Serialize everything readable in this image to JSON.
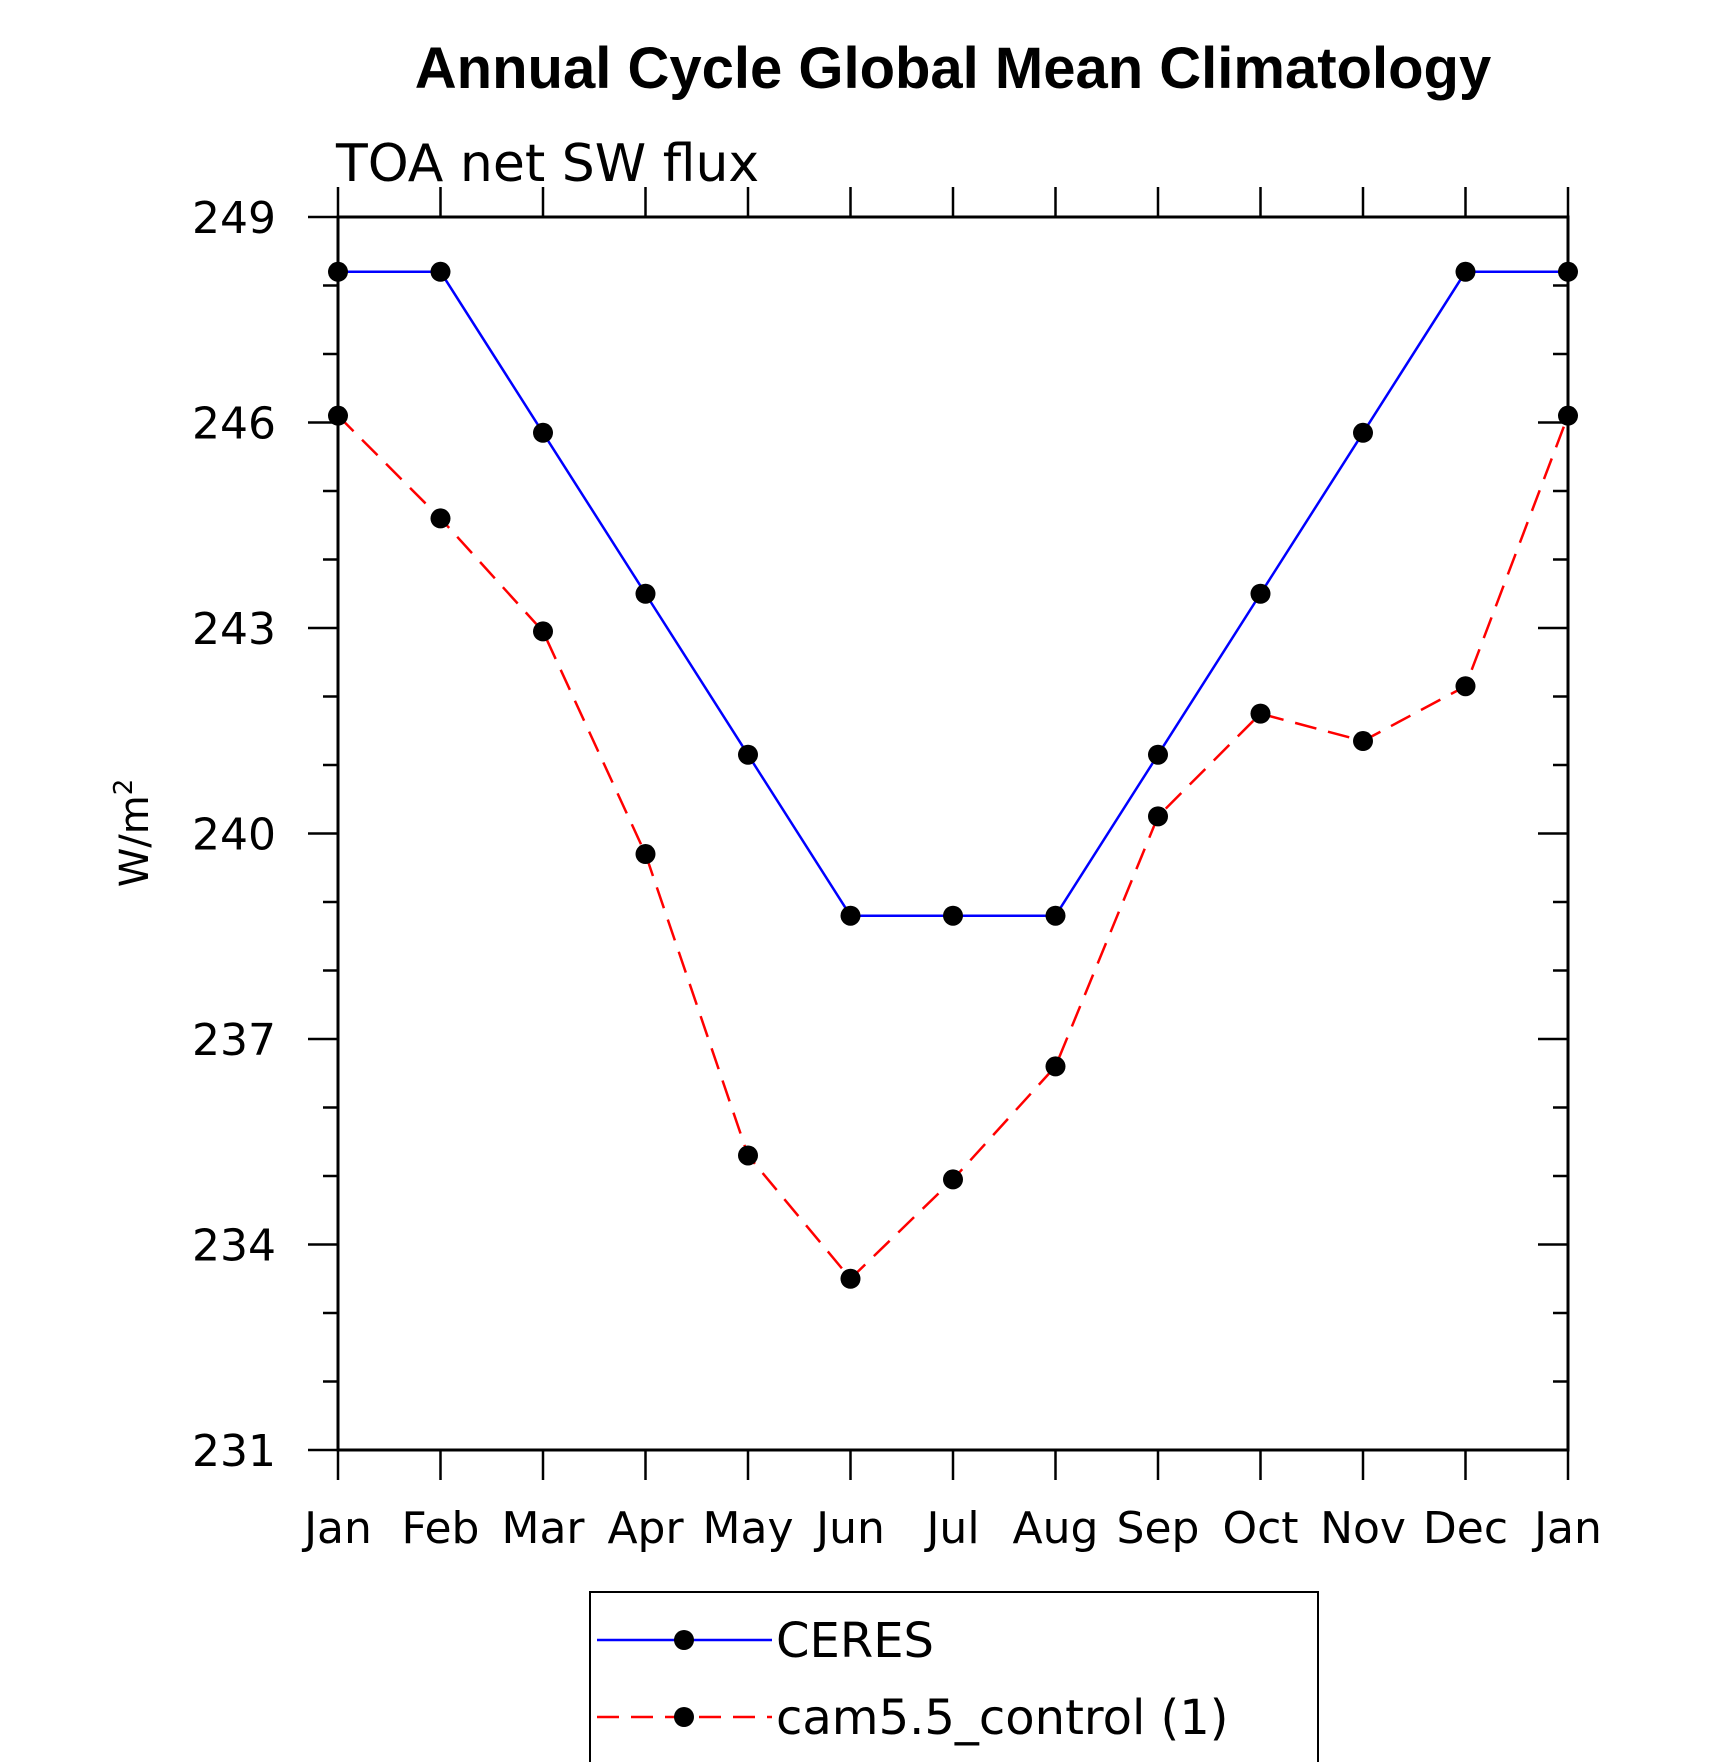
{
  "chart_data": {
    "type": "line",
    "title": "Annual Cycle Global Mean Climatology",
    "subtitle": "TOA net SW flux",
    "ylabel": "W/m",
    "ylabel_superscript": "2",
    "ylim": [
      231,
      249
    ],
    "yticks": [
      "231",
      "234",
      "237",
      "240",
      "243",
      "246",
      "249"
    ],
    "categories": [
      "Jan",
      "Feb",
      "Mar",
      "Apr",
      "May",
      "Jun",
      "Jul",
      "Aug",
      "Sep",
      "Oct",
      "Nov",
      "Dec",
      "Jan"
    ],
    "series": [
      {
        "name": "CERES",
        "color": "#0000ff",
        "dash": "solid",
        "values": [
          248.2,
          248.2,
          245.85,
          243.5,
          241.15,
          238.8,
          238.8,
          238.8,
          241.15,
          243.5,
          245.85,
          248.2,
          248.2
        ]
      },
      {
        "name": "cam5.5_control (1)",
        "color": "#ff0000",
        "dash": "dashed",
        "values": [
          246.1,
          244.6,
          242.95,
          239.7,
          235.3,
          233.5,
          234.95,
          236.6,
          240.25,
          241.75,
          241.35,
          242.15,
          246.1
        ]
      }
    ],
    "grid": false,
    "legend_position": "bottom-center"
  }
}
